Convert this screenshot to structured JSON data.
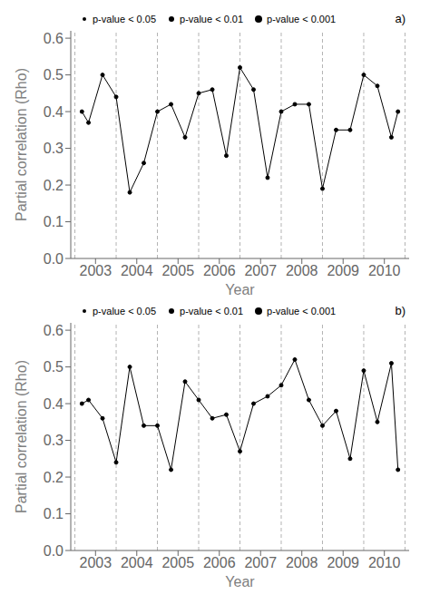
{
  "chart_data": [
    {
      "type": "line",
      "x": [
        2002.67,
        2002.83,
        2003.17,
        2003.5,
        2003.83,
        2004.17,
        2004.5,
        2004.83,
        2005.17,
        2005.5,
        2005.83,
        2006.17,
        2006.5,
        2006.83,
        2007.17,
        2007.5,
        2007.83,
        2008.17,
        2008.5,
        2008.83,
        2009.17,
        2009.5,
        2009.83,
        2010.17,
        2010.33
      ],
      "values": [
        0.4,
        0.37,
        0.5,
        0.44,
        0.18,
        0.26,
        0.4,
        0.42,
        0.33,
        0.45,
        0.46,
        0.28,
        0.52,
        0.46,
        0.22,
        0.4,
        0.42,
        0.42,
        0.19,
        0.35,
        0.35,
        0.5,
        0.47,
        0.33,
        0.4
      ],
      "xlabel": "Year",
      "ylabel": "Partial correlation (Rho)",
      "xlim": [
        2002.4,
        2010.6
      ],
      "ylim": [
        0.0,
        0.62
      ],
      "xticks": [
        2003,
        2004,
        2005,
        2006,
        2007,
        2008,
        2009,
        2010
      ],
      "yticks": [
        {
          "value": 0,
          "label": "0.0"
        },
        0.1,
        0.2,
        0.3,
        0.4,
        0.5,
        0.6
      ],
      "vlines": [
        2002.5,
        2003.5,
        2004.5,
        2005.5,
        2006.5,
        2007.5,
        2008.5,
        2009.5,
        2010.5
      ],
      "legend_labels": [
        "p-value < 0.05",
        "p-value < 0.01",
        "p-value < 0.001"
      ],
      "annotations": [
        "a)"
      ],
      "color": "black",
      "marker": "circle",
      "line_style": "solid"
    },
    {
      "type": "line",
      "x": [
        2002.67,
        2002.83,
        2003.17,
        2003.5,
        2003.83,
        2004.17,
        2004.5,
        2004.83,
        2005.17,
        2005.5,
        2005.83,
        2006.17,
        2006.5,
        2006.83,
        2007.17,
        2007.5,
        2007.83,
        2008.17,
        2008.5,
        2008.83,
        2009.17,
        2009.5,
        2009.83,
        2010.17,
        2010.33
      ],
      "values": [
        0.4,
        0.41,
        0.36,
        0.24,
        0.5,
        0.34,
        0.34,
        0.22,
        0.46,
        0.41,
        0.36,
        0.37,
        0.27,
        0.4,
        0.42,
        0.45,
        0.52,
        0.41,
        0.34,
        0.38,
        0.25,
        0.49,
        0.35,
        0.51,
        0.22
      ],
      "xlabel": "Year",
      "ylabel": "Partial correlation (Rho)",
      "xlim": [
        2002.4,
        2010.6
      ],
      "ylim": [
        0.0,
        0.62
      ],
      "xticks": [
        2003,
        2004,
        2005,
        2006,
        2007,
        2008,
        2009,
        2010
      ],
      "yticks": [
        {
          "value": 0,
          "label": "0.0"
        },
        0.1,
        0.2,
        0.3,
        0.4,
        0.5,
        0.6
      ],
      "vlines": [
        2002.5,
        2003.5,
        2004.5,
        2005.5,
        2006.5,
        2007.5,
        2008.5,
        2009.5,
        2010.5
      ],
      "legend_labels": [
        "p-value < 0.05",
        "p-value < 0.01",
        "p-value < 0.001"
      ],
      "annotations": [
        "b)"
      ],
      "color": "black",
      "marker": "circle",
      "line_style": "solid"
    }
  ]
}
